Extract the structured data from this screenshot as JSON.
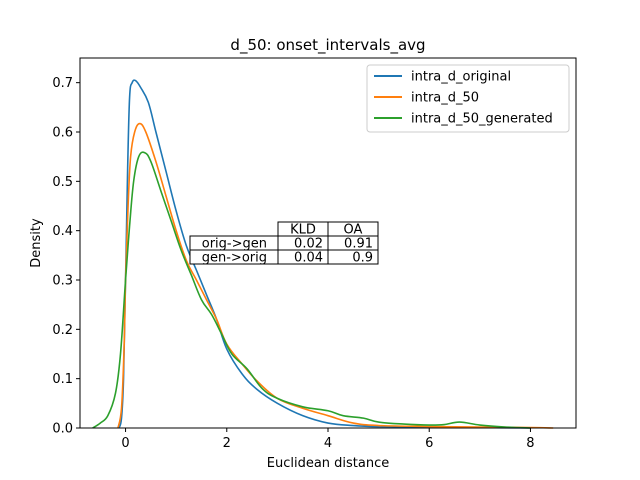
{
  "chart_data": {
    "type": "line",
    "title": "d_50: onset_intervals_avg",
    "xlabel": "Euclidean distance",
    "ylabel": "Density",
    "xlim": [
      -0.9,
      8.9
    ],
    "ylim": [
      0,
      0.75
    ],
    "xticks": [
      0,
      2,
      4,
      6,
      8
    ],
    "yticks": [
      0.0,
      0.1,
      0.2,
      0.3,
      0.4,
      0.5,
      0.6,
      0.7
    ],
    "ytick_labels": [
      "0.0",
      "0.1",
      "0.2",
      "0.3",
      "0.4",
      "0.5",
      "0.6",
      "0.7"
    ],
    "grid": false,
    "legend_position": "top-right",
    "series": [
      {
        "name": "intra_d_original",
        "color": "#1f77b4",
        "points": [
          [
            -0.13,
            0.0
          ],
          [
            -0.08,
            0.02
          ],
          [
            -0.04,
            0.1
          ],
          [
            0.0,
            0.3
          ],
          [
            0.04,
            0.52
          ],
          [
            0.08,
            0.67
          ],
          [
            0.13,
            0.7
          ],
          [
            0.2,
            0.704
          ],
          [
            0.3,
            0.69
          ],
          [
            0.45,
            0.66
          ],
          [
            0.6,
            0.6
          ],
          [
            0.8,
            0.52
          ],
          [
            1.0,
            0.44
          ],
          [
            1.2,
            0.37
          ],
          [
            1.4,
            0.32
          ],
          [
            1.6,
            0.27
          ],
          [
            1.8,
            0.22
          ],
          [
            2.0,
            0.16
          ],
          [
            2.3,
            0.11
          ],
          [
            2.6,
            0.078
          ],
          [
            3.0,
            0.05
          ],
          [
            3.5,
            0.025
          ],
          [
            4.0,
            0.01
          ],
          [
            4.5,
            0.005
          ],
          [
            5.0,
            0.003
          ],
          [
            6.0,
            0.002
          ],
          [
            7.0,
            0.001
          ],
          [
            8.0,
            0.0
          ]
        ]
      },
      {
        "name": "intra_d_50",
        "color": "#ff7f0e",
        "points": [
          [
            -0.15,
            0.0
          ],
          [
            -0.08,
            0.04
          ],
          [
            -0.03,
            0.16
          ],
          [
            0.0,
            0.3
          ],
          [
            0.05,
            0.45
          ],
          [
            0.1,
            0.55
          ],
          [
            0.18,
            0.6
          ],
          [
            0.28,
            0.617
          ],
          [
            0.4,
            0.6
          ],
          [
            0.6,
            0.54
          ],
          [
            0.8,
            0.47
          ],
          [
            1.0,
            0.4
          ],
          [
            1.2,
            0.34
          ],
          [
            1.4,
            0.3
          ],
          [
            1.6,
            0.26
          ],
          [
            1.8,
            0.22
          ],
          [
            2.0,
            0.17
          ],
          [
            2.3,
            0.13
          ],
          [
            2.6,
            0.095
          ],
          [
            3.0,
            0.06
          ],
          [
            3.5,
            0.04
          ],
          [
            4.0,
            0.025
          ],
          [
            4.5,
            0.01
          ],
          [
            5.0,
            0.005
          ],
          [
            6.0,
            0.003
          ],
          [
            7.0,
            0.002
          ],
          [
            8.0,
            0.001
          ],
          [
            8.45,
            0.0
          ]
        ]
      },
      {
        "name": "intra_d_50_generated",
        "color": "#2ca02c",
        "points": [
          [
            -0.65,
            0.0
          ],
          [
            -0.5,
            0.01
          ],
          [
            -0.35,
            0.025
          ],
          [
            -0.2,
            0.07
          ],
          [
            -0.1,
            0.15
          ],
          [
            0.0,
            0.3
          ],
          [
            0.08,
            0.41
          ],
          [
            0.16,
            0.5
          ],
          [
            0.26,
            0.55
          ],
          [
            0.38,
            0.558
          ],
          [
            0.5,
            0.54
          ],
          [
            0.7,
            0.48
          ],
          [
            0.9,
            0.42
          ],
          [
            1.1,
            0.36
          ],
          [
            1.3,
            0.31
          ],
          [
            1.5,
            0.26
          ],
          [
            1.7,
            0.23
          ],
          [
            1.9,
            0.19
          ],
          [
            2.1,
            0.15
          ],
          [
            2.4,
            0.12
          ],
          [
            2.7,
            0.08
          ],
          [
            3.0,
            0.06
          ],
          [
            3.5,
            0.043
          ],
          [
            4.0,
            0.035
          ],
          [
            4.3,
            0.025
          ],
          [
            4.7,
            0.02
          ],
          [
            5.0,
            0.012
          ],
          [
            5.5,
            0.008
          ],
          [
            6.0,
            0.006
          ],
          [
            6.3,
            0.007
          ],
          [
            6.6,
            0.012
          ],
          [
            7.0,
            0.006
          ],
          [
            7.5,
            0.002
          ],
          [
            8.0,
            0.0
          ]
        ]
      }
    ],
    "table": {
      "col_labels": [
        "KLD",
        "OA"
      ],
      "rows": [
        {
          "label": "orig->gen",
          "values": [
            "0.02",
            "0.91"
          ]
        },
        {
          "label": "gen->orig",
          "values": [
            "0.04",
            "0.9"
          ]
        }
      ]
    }
  }
}
